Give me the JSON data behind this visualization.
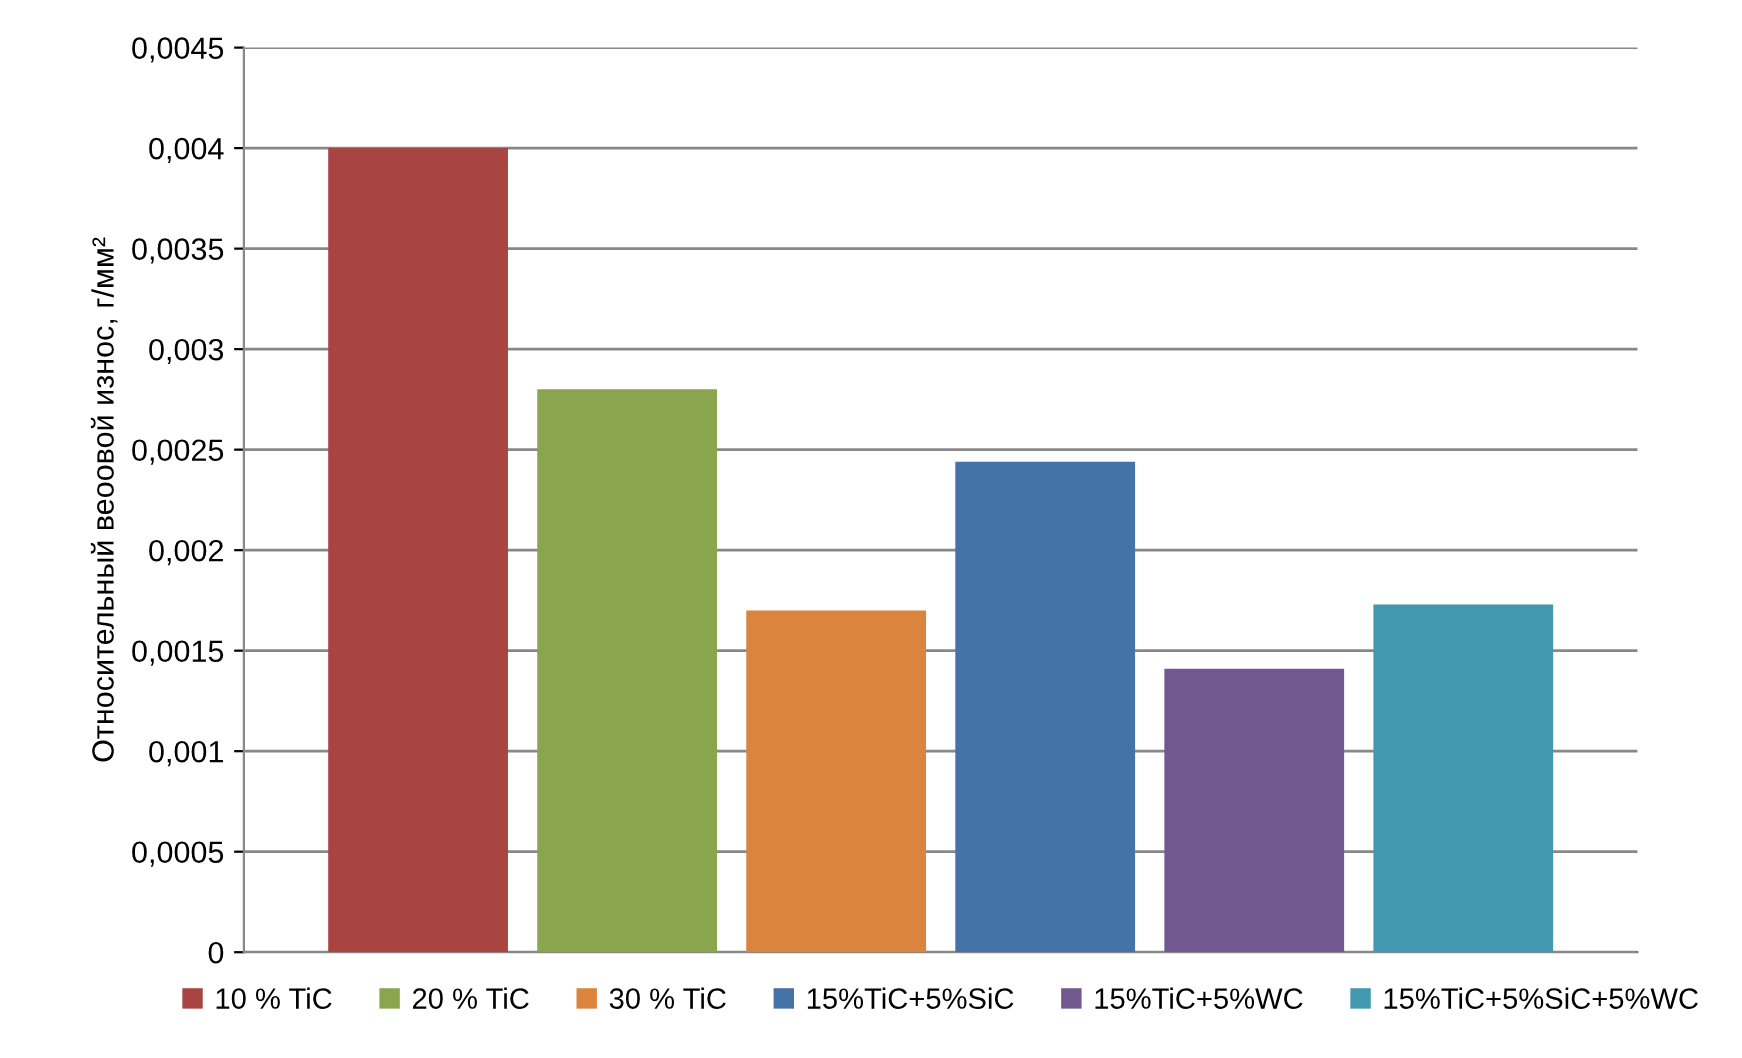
{
  "chart_data": {
    "type": "bar",
    "ylabel": "Относительный веоовой износ, г/мм²",
    "categories": [
      null
    ],
    "series": [
      {
        "name": "10 % TiC",
        "color": "#a84543",
        "values": [
          0.004
        ]
      },
      {
        "name": "20 % TiC",
        "color": "#89a54e",
        "values": [
          0.0028
        ]
      },
      {
        "name": "30 % TiC",
        "color": "#db843d",
        "values": [
          0.0017
        ]
      },
      {
        "name": "15%TiC+5%SiC",
        "color": "#4572a7",
        "values": [
          0.00244
        ]
      },
      {
        "name": "15%TiC+5%WC",
        "color": "#71588f",
        "values": [
          0.00141
        ]
      },
      {
        "name": "15%TiC+5%SiC+5%WC",
        "color": "#4198af",
        "values": [
          0.00173
        ]
      }
    ],
    "ylim": [
      0,
      0.0045
    ],
    "yticks": [
      {
        "value": 0,
        "label": "0"
      },
      {
        "value": 0.0005,
        "label": "0,0005"
      },
      {
        "value": 0.001,
        "label": "0,001"
      },
      {
        "value": 0.0015,
        "label": "0,0015"
      },
      {
        "value": 0.002,
        "label": "0,002"
      },
      {
        "value": 0.0025,
        "label": "0,0025"
      },
      {
        "value": 0.003,
        "label": "0,003"
      },
      {
        "value": 0.0035,
        "label": "0,0035"
      },
      {
        "value": 0.004,
        "label": "0,004"
      },
      {
        "value": 0.0045,
        "label": "0,0045"
      }
    ],
    "grid": "y",
    "legend": "bottom"
  }
}
